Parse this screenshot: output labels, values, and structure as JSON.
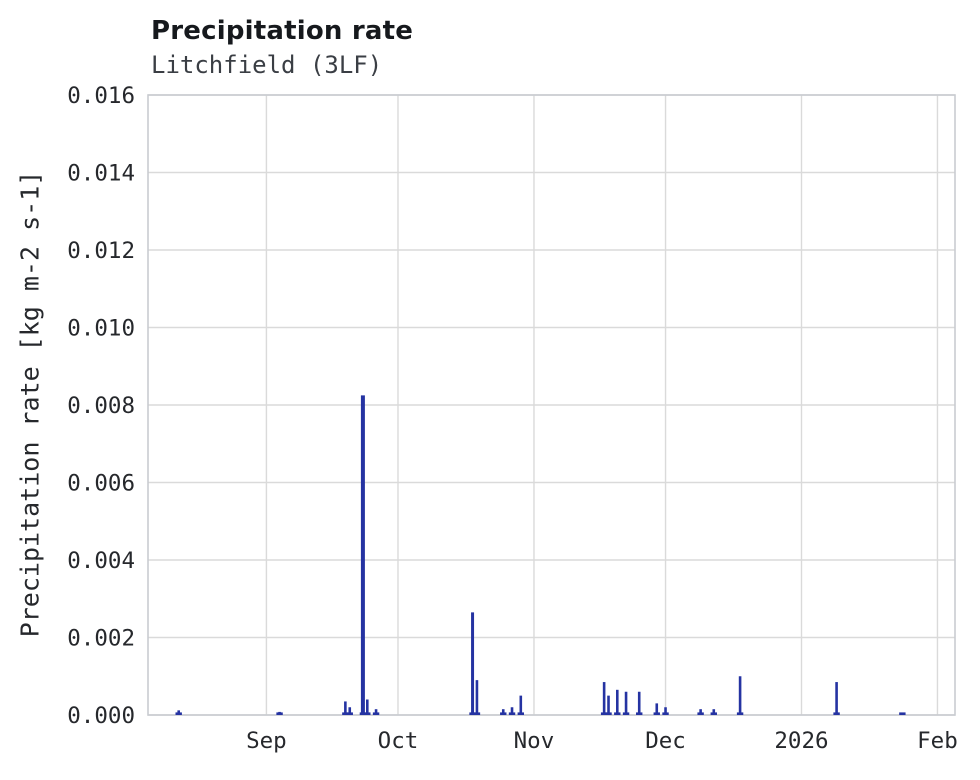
{
  "chart_data": {
    "type": "line",
    "title": "Precipitation rate",
    "subtitle": "Litchfield (3LF)",
    "xlabel": "",
    "ylabel": "Precipitation rate [kg m-2 s-1]",
    "ylim": [
      0,
      0.016
    ],
    "grid": true,
    "legend": "none",
    "line_color": "#2533a2",
    "grid_color": "#dadada",
    "spine_color": "#c9ccd1",
    "text_color": "#26282c",
    "x_domain": [
      "2025-08-05",
      "2026-02-05"
    ],
    "yticks": [
      0,
      0.002,
      0.004,
      0.006,
      0.008,
      0.01,
      0.012,
      0.014,
      0.016
    ],
    "ytick_labels": [
      "0.000",
      "0.002",
      "0.004",
      "0.006",
      "0.008",
      "0.010",
      "0.012",
      "0.014",
      "0.016"
    ],
    "xticks": [
      {
        "date": "2025-09-01",
        "label": "Sep"
      },
      {
        "date": "2025-10-01",
        "label": "Oct"
      },
      {
        "date": "2025-11-01",
        "label": "Nov"
      },
      {
        "date": "2025-12-01",
        "label": "Dec"
      },
      {
        "date": "2026-01-01",
        "label": "2026"
      },
      {
        "date": "2026-02-01",
        "label": "Feb"
      }
    ],
    "points": [
      {
        "date": "2025-08-12",
        "value": 0.00012
      },
      {
        "date": "2025-09-04",
        "value": 8e-05
      },
      {
        "date": "2025-09-19",
        "value": 0.00035
      },
      {
        "date": "2025-09-20",
        "value": 0.0002
      },
      {
        "date": "2025-09-23",
        "value": 0.00825,
        "w": 4
      },
      {
        "date": "2025-09-24",
        "value": 0.0004
      },
      {
        "date": "2025-09-26",
        "value": 0.00015
      },
      {
        "date": "2025-10-18",
        "value": 0.00265,
        "w": 3
      },
      {
        "date": "2025-10-19",
        "value": 0.0009
      },
      {
        "date": "2025-10-25",
        "value": 0.00015
      },
      {
        "date": "2025-10-27",
        "value": 0.0002
      },
      {
        "date": "2025-10-29",
        "value": 0.0005
      },
      {
        "date": "2025-11-17",
        "value": 0.00085
      },
      {
        "date": "2025-11-18",
        "value": 0.0005
      },
      {
        "date": "2025-11-20",
        "value": 0.00065
      },
      {
        "date": "2025-11-22",
        "value": 0.0006
      },
      {
        "date": "2025-11-25",
        "value": 0.0006
      },
      {
        "date": "2025-11-29",
        "value": 0.0003
      },
      {
        "date": "2025-12-01",
        "value": 0.0002
      },
      {
        "date": "2025-12-09",
        "value": 0.00015
      },
      {
        "date": "2025-12-12",
        "value": 0.00015
      },
      {
        "date": "2025-12-18",
        "value": 0.001
      },
      {
        "date": "2026-01-09",
        "value": 0.00085
      },
      {
        "date": "2026-01-24",
        "value": 5e-05
      }
    ]
  }
}
